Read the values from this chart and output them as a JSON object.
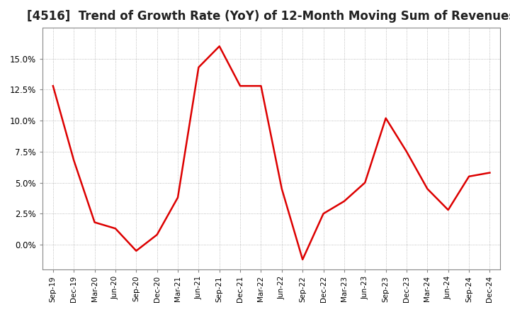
{
  "title": "[4516]  Trend of Growth Rate (YoY) of 12-Month Moving Sum of Revenues",
  "title_fontsize": 12,
  "line_color": "#dd0000",
  "background_color": "#ffffff",
  "plot_bg_color": "#ffffff",
  "grid_color": "#aaaaaa",
  "ylim": [
    -0.02,
    0.175
  ],
  "yticks": [
    0.0,
    0.025,
    0.05,
    0.075,
    0.1,
    0.125,
    0.15
  ],
  "x_labels": [
    "Sep-19",
    "Dec-19",
    "Mar-20",
    "Jun-20",
    "Sep-20",
    "Dec-20",
    "Mar-21",
    "Jun-21",
    "Sep-21",
    "Dec-21",
    "Mar-22",
    "Jun-22",
    "Sep-22",
    "Dec-22",
    "Mar-23",
    "Jun-23",
    "Sep-23",
    "Dec-23",
    "Mar-24",
    "Jun-24",
    "Sep-24",
    "Dec-24"
  ],
  "values": [
    0.128,
    0.068,
    0.018,
    0.013,
    -0.005,
    0.008,
    0.038,
    0.143,
    0.16,
    0.128,
    0.128,
    0.045,
    -0.012,
    0.025,
    0.035,
    0.05,
    0.102,
    0.075,
    0.045,
    0.028,
    0.055,
    0.058
  ]
}
